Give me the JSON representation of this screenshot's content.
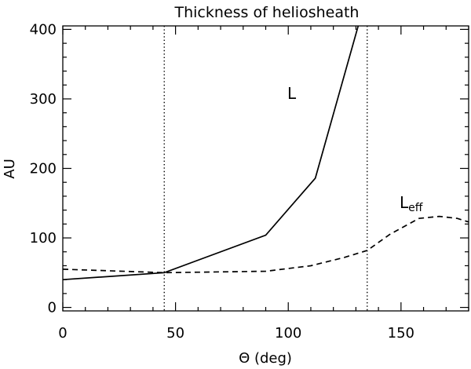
{
  "chart_data": {
    "type": "line",
    "title": "Thickness of heliosheath",
    "xlabel": "Θ (deg)",
    "ylabel": "AU",
    "xlim": [
      0,
      180
    ],
    "ylim": [
      -5,
      405
    ],
    "x_ticks": [
      0,
      50,
      100,
      150
    ],
    "y_ticks": [
      0,
      100,
      200,
      300,
      400
    ],
    "x_minor_step": 10,
    "y_minor_step": 20,
    "reference_lines": [
      {
        "name": "vline-45",
        "x": 45,
        "style": "dotted"
      },
      {
        "name": "vline-135",
        "x": 135,
        "style": "dotted"
      }
    ],
    "series": [
      {
        "name": "L",
        "style": "solid",
        "x": [
          0,
          45,
          90,
          112,
          131
        ],
        "y": [
          40,
          50,
          104,
          186,
          405
        ]
      },
      {
        "name": "L_eff",
        "style": "dashed",
        "x": [
          0,
          45,
          90,
          110,
          125,
          135,
          145,
          158,
          167,
          175,
          180
        ],
        "y": [
          55,
          50,
          52,
          60,
          72,
          82,
          105,
          128,
          131,
          128,
          123
        ]
      }
    ],
    "annotations": [
      {
        "name": "L-series-label",
        "text": "L",
        "at": [
          102,
          310
        ]
      },
      {
        "name": "Leff-series-label",
        "text": "L",
        "subscript": "eff",
        "at": [
          147,
          155
        ]
      }
    ]
  }
}
